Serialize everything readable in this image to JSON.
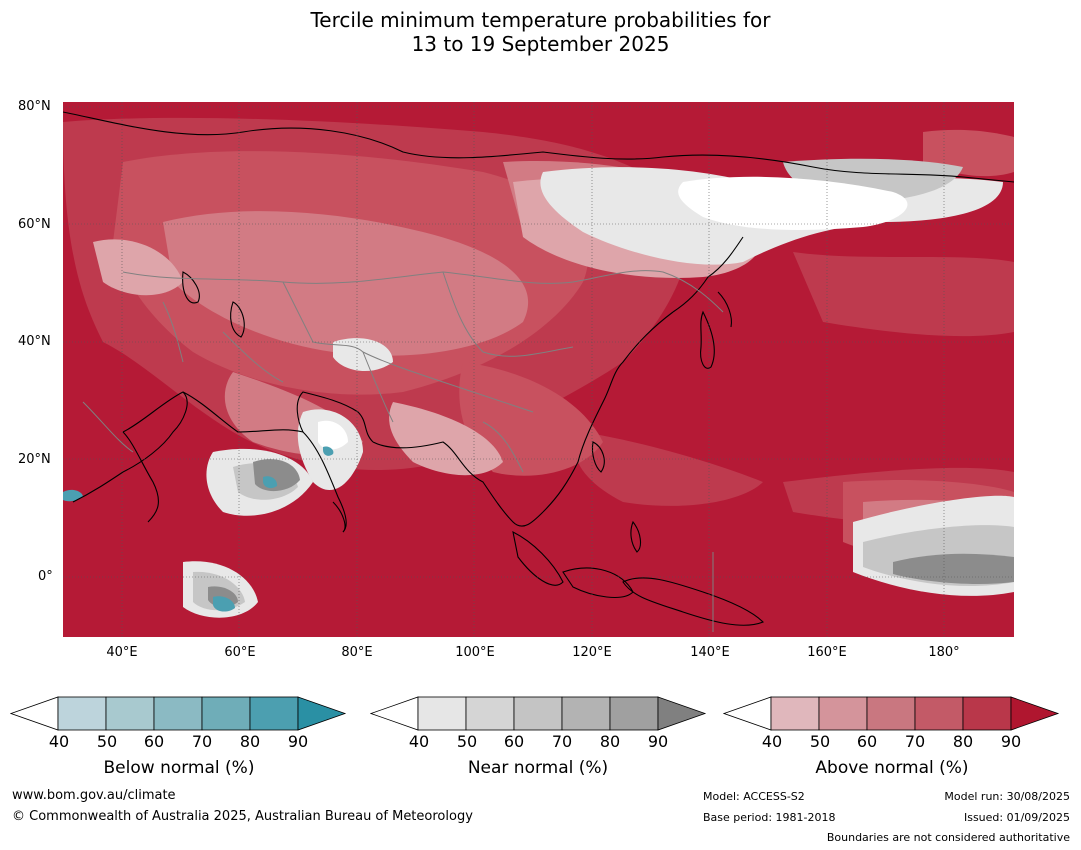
{
  "title": {
    "line1": "Tercile minimum temperature probabilities for",
    "line2": "13 to 19 September 2025"
  },
  "map": {
    "lat_ticks": [
      "80°N",
      "60°N",
      "40°N",
      "20°N",
      "0°"
    ],
    "lon_ticks": [
      "40°E",
      "60°E",
      "80°E",
      "100°E",
      "120°E",
      "140°E",
      "160°E",
      "180°"
    ],
    "colors": {
      "above_90": "#b51a36",
      "above_80": "#be3a4e",
      "above_70": "#c8515f",
      "above_60": "#d27b84",
      "above_50": "#dea5aa",
      "near_40": "#e8e8e8",
      "near_60": "#c6c6c6",
      "near_90": "#8c8c8c",
      "below_50": "#a9c8d0",
      "below_80": "#4b9fb1",
      "coast": "#000000",
      "border": "#808080"
    }
  },
  "colorbars": [
    {
      "id": "below",
      "title": "Below normal (%)",
      "ticks": [
        "40",
        "50",
        "60",
        "70",
        "80",
        "90"
      ],
      "colors": [
        "#ffffff",
        "#bdd4dc",
        "#a8c9cf",
        "#8bbac3",
        "#6fadb8",
        "#4c9fb0",
        "#2a90a4"
      ]
    },
    {
      "id": "near",
      "title": "Near normal (%)",
      "ticks": [
        "40",
        "50",
        "60",
        "70",
        "80",
        "90"
      ],
      "colors": [
        "#ffffff",
        "#e6e6e6",
        "#d5d5d5",
        "#c4c4c4",
        "#b3b3b3",
        "#a0a0a0",
        "#808080"
      ]
    },
    {
      "id": "above",
      "title": "Above normal (%)",
      "ticks": [
        "40",
        "50",
        "60",
        "70",
        "80",
        "90"
      ],
      "colors": [
        "#ffffff",
        "#e0b7bc",
        "#d4949b",
        "#c97780",
        "#c35a67",
        "#b9374a",
        "#b0162f"
      ]
    }
  ],
  "footer": {
    "url": "www.bom.gov.au/climate",
    "copyright": "© Commonwealth of Australia 2025, Australian Bureau of Meteorology",
    "model": "Model: ACCESS-S2",
    "base_period": "Base period: 1981-2018",
    "model_run": "Model run: 30/08/2025",
    "issued": "Issued: 01/09/2025",
    "boundaries": "Boundaries are not considered authoritative"
  }
}
